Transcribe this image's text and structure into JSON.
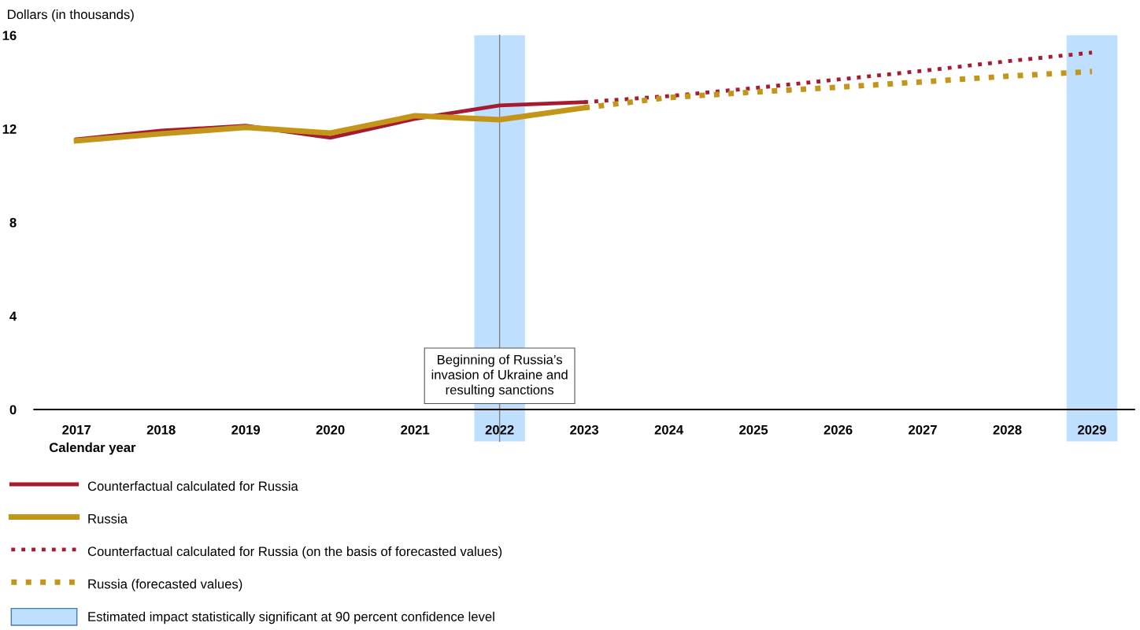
{
  "chart_data": {
    "type": "line",
    "ylabel": "Dollars (in thousands)",
    "xlabel": "Calendar year",
    "categories": [
      "2017",
      "2018",
      "2019",
      "2020",
      "2021",
      "2022",
      "2023",
      "2024",
      "2025",
      "2026",
      "2027",
      "2028",
      "2029"
    ],
    "series": [
      {
        "name": "Counterfactual calculated for Russia",
        "color": "#a51c30",
        "line_style": "solid",
        "values": [
          11.55,
          11.92,
          12.13,
          11.62,
          12.43,
          13.0,
          13.14,
          null,
          null,
          null,
          null,
          null,
          null
        ]
      },
      {
        "name": "Russia",
        "color": "#c39519",
        "line_style": "solid",
        "values": [
          11.49,
          11.79,
          12.06,
          11.82,
          12.56,
          12.39,
          12.9,
          null,
          null,
          null,
          null,
          null,
          null
        ]
      },
      {
        "name": "Counterfactual calculated for Russia (on the basis of forecasted values)",
        "color": "#a51c30",
        "line_style": "dotted",
        "values": [
          null,
          null,
          null,
          null,
          null,
          null,
          13.14,
          13.4,
          13.74,
          14.11,
          14.48,
          14.89,
          15.26
        ]
      },
      {
        "name": "Russia (forecasted values)",
        "color": "#c39519",
        "line_style": "dotted",
        "values": [
          null,
          null,
          null,
          null,
          null,
          null,
          12.9,
          13.34,
          13.57,
          13.78,
          14.01,
          14.25,
          14.45
        ]
      }
    ],
    "ylim": [
      0,
      16
    ],
    "yticks": [
      0,
      4,
      8,
      12,
      16
    ],
    "grid": false,
    "legend": "bottom",
    "marker": "none",
    "ref_lines": [
      {
        "axis": "x",
        "value": "2022",
        "label": "Beginning of Russia’s\ninvasion of Ukraine and\nresulting sanctions",
        "color": "#808080"
      }
    ],
    "bands": [
      {
        "axis": "x",
        "from": "2022",
        "to": "2022",
        "label": "Estimated impact statistically significant at 90 percent confidence level",
        "color": "#bfdfff"
      },
      {
        "axis": "x",
        "from": "2029",
        "to": "2029",
        "color": "#bfdfff"
      }
    ]
  }
}
